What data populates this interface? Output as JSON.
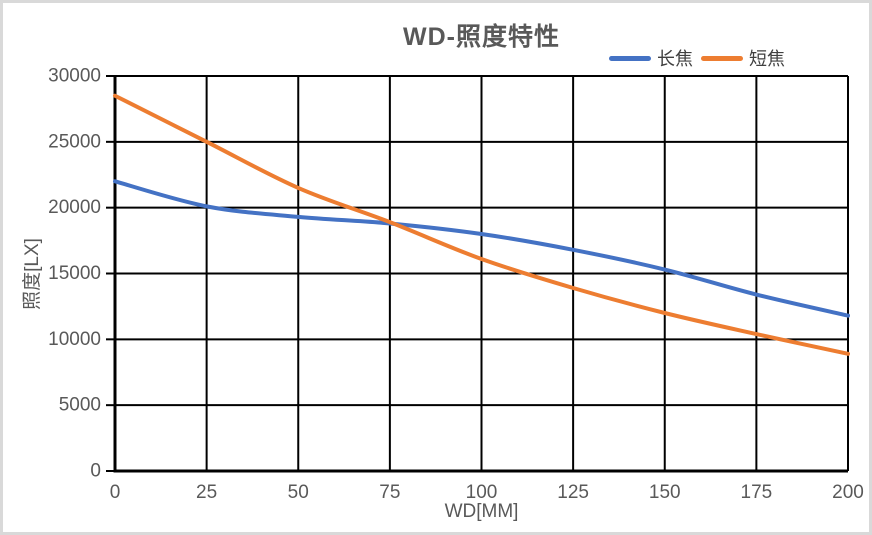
{
  "window": {
    "background": "#ffffff",
    "border_color": "#d9d9d9"
  },
  "chart": {
    "title": "WD-照度特性",
    "x_axis_title": "WD[MM]",
    "y_axis_title": "照度[LX]"
  },
  "chart_data": {
    "type": "line",
    "title": "WD-照度特性",
    "xlabel": "WD[MM]",
    "ylabel": "照度[LX]",
    "x": [
      0,
      25,
      50,
      75,
      100,
      125,
      150,
      175,
      200
    ],
    "series": [
      {
        "name": "长焦",
        "color": "#4472C4",
        "values": [
          22000,
          20100,
          19300,
          18800,
          18000,
          16800,
          15300,
          13400,
          11800
        ]
      },
      {
        "name": "短焦",
        "color": "#ED7D31",
        "values": [
          28500,
          25000,
          21500,
          18900,
          16100,
          13900,
          12000,
          10400,
          8900
        ]
      }
    ],
    "xlim": [
      0,
      200
    ],
    "ylim": [
      0,
      30000
    ],
    "x_tick_step": 25,
    "y_tick_step": 5000,
    "grid": true,
    "grid_color": "#000000",
    "axis_color": "#000000",
    "tick_label_color": "#595959",
    "title_color": "#595959",
    "legend_position": "top-right",
    "smooth": true,
    "line_width": 4
  }
}
